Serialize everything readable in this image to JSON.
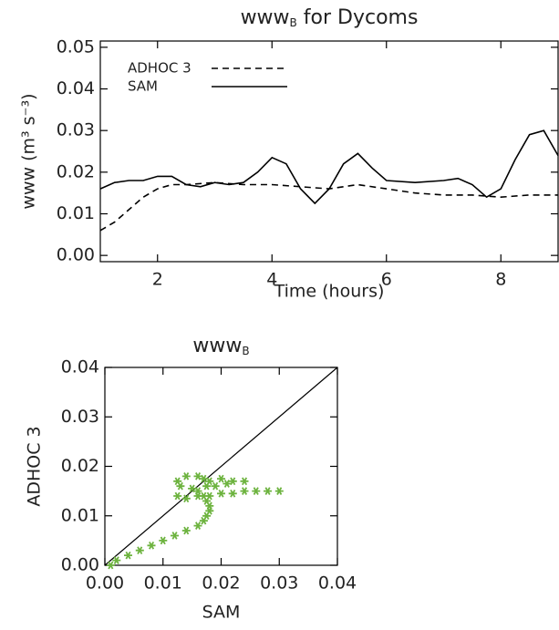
{
  "chart_data": [
    {
      "type": "line",
      "title": {
        "text": "www",
        "subscript": "B",
        "suffix": " for Dycoms"
      },
      "xlabel": "Time (hours)",
      "ylabel": "www (m³ s⁻³)",
      "xlim": [
        1,
        9
      ],
      "ylim": [
        -0.0015,
        0.0515
      ],
      "xticks": [
        2,
        4,
        6,
        8
      ],
      "yticks": [
        {
          "value": 0,
          "label": "0.00"
        },
        0.01,
        0.02,
        0.03,
        0.04,
        0.05
      ],
      "legend": "upper left",
      "series": [
        {
          "name": "ADHOC 3",
          "color": "#000000",
          "linestyle": "dashed",
          "x": [
            1,
            1.25,
            1.5,
            1.75,
            2,
            2.25,
            2.5,
            3,
            3.5,
            4,
            4.5,
            5,
            5.5,
            6,
            6.5,
            7,
            7.5,
            8,
            8.5,
            9
          ],
          "values": [
            0.006,
            0.008,
            0.011,
            0.014,
            0.016,
            0.017,
            0.017,
            0.0175,
            0.017,
            0.017,
            0.0165,
            0.016,
            0.017,
            0.016,
            0.015,
            0.0145,
            0.0145,
            0.014,
            0.0145,
            0.0145
          ]
        },
        {
          "name": "SAM",
          "color": "#000000",
          "linestyle": "solid",
          "x": [
            1,
            1.25,
            1.5,
            1.75,
            2,
            2.25,
            2.5,
            2.75,
            3,
            3.25,
            3.5,
            3.75,
            4,
            4.25,
            4.5,
            4.75,
            5,
            5.25,
            5.5,
            5.75,
            6,
            6.5,
            7,
            7.25,
            7.5,
            7.75,
            8,
            8.25,
            8.5,
            8.75,
            9
          ],
          "values": [
            0.016,
            0.0175,
            0.018,
            0.018,
            0.019,
            0.019,
            0.017,
            0.0165,
            0.0175,
            0.017,
            0.0175,
            0.02,
            0.0235,
            0.022,
            0.016,
            0.0125,
            0.016,
            0.022,
            0.0245,
            0.021,
            0.018,
            0.0175,
            0.018,
            0.0185,
            0.017,
            0.014,
            0.016,
            0.023,
            0.029,
            0.03,
            0.024
          ]
        }
      ]
    },
    {
      "type": "scatter",
      "title": {
        "text": "www",
        "subscript": "B"
      },
      "xlabel": "SAM",
      "ylabel": "ADHOC 3",
      "xlim": [
        0,
        0.04
      ],
      "ylim": [
        0,
        0.04
      ],
      "xticks": [
        {
          "value": 0,
          "label": "0.00"
        },
        0.01,
        0.02,
        0.03,
        0.04
      ],
      "yticks": [
        {
          "value": 0,
          "label": "0.00"
        },
        0.01,
        0.02,
        0.03,
        0.04
      ],
      "color": "#6db33f",
      "x": [
        0.001,
        0.002,
        0.004,
        0.006,
        0.008,
        0.01,
        0.012,
        0.014,
        0.016,
        0.017,
        0.0175,
        0.018,
        0.018,
        0.0175,
        0.017,
        0.016,
        0.015,
        0.013,
        0.0125,
        0.014,
        0.016,
        0.017,
        0.018,
        0.02,
        0.022,
        0.024,
        0.0125,
        0.014,
        0.016,
        0.018,
        0.02,
        0.022,
        0.024,
        0.026,
        0.028,
        0.03,
        0.0175,
        0.019,
        0.021
      ],
      "y": [
        0,
        0.001,
        0.002,
        0.003,
        0.004,
        0.005,
        0.006,
        0.007,
        0.008,
        0.009,
        0.01,
        0.011,
        0.012,
        0.013,
        0.014,
        0.015,
        0.0155,
        0.016,
        0.017,
        0.018,
        0.018,
        0.0175,
        0.017,
        0.0175,
        0.017,
        0.017,
        0.014,
        0.0135,
        0.014,
        0.014,
        0.0145,
        0.0145,
        0.015,
        0.015,
        0.015,
        0.015,
        0.016,
        0.016,
        0.0165
      ]
    }
  ]
}
